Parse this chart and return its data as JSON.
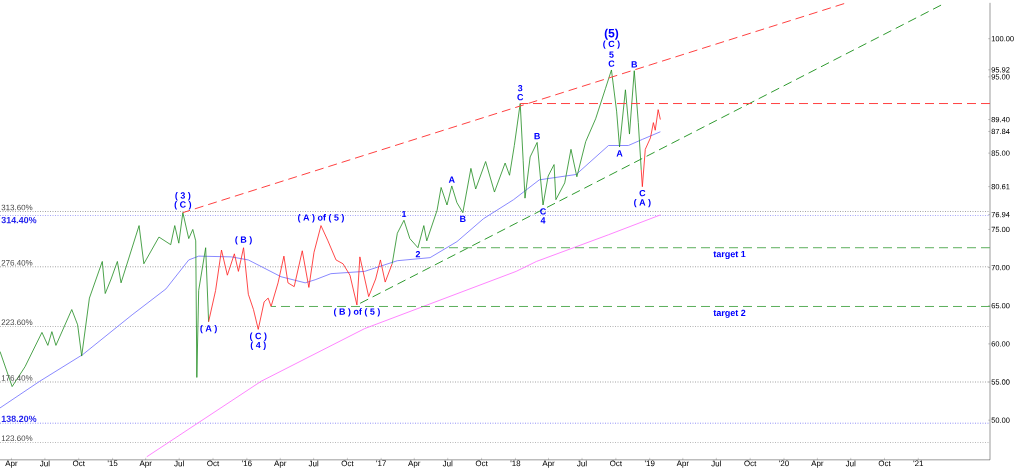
{
  "chart_data": {
    "type": "line",
    "xlim": [
      "2014-03-01",
      "2021-07-15"
    ],
    "ylim": [
      44.8,
      104.7
    ],
    "xticks": [
      {
        "value": "2014-04-01",
        "label": "Apr"
      },
      {
        "value": "2014-07-01",
        "label": "Jul"
      },
      {
        "value": "2014-10-01",
        "label": "Oct"
      },
      {
        "value": "2015-01-01",
        "label": "'15"
      },
      {
        "value": "2015-04-01",
        "label": "Apr"
      },
      {
        "value": "2015-07-01",
        "label": "Jul"
      },
      {
        "value": "2015-10-01",
        "label": "Oct"
      },
      {
        "value": "2016-01-01",
        "label": "'16"
      },
      {
        "value": "2016-04-01",
        "label": "Apr"
      },
      {
        "value": "2016-07-01",
        "label": "Jul"
      },
      {
        "value": "2016-10-01",
        "label": "Oct"
      },
      {
        "value": "2017-01-01",
        "label": "'17"
      },
      {
        "value": "2017-04-01",
        "label": "Apr"
      },
      {
        "value": "2017-07-01",
        "label": "Jul"
      },
      {
        "value": "2017-10-01",
        "label": "Oct"
      },
      {
        "value": "2018-01-01",
        "label": "'18"
      },
      {
        "value": "2018-04-01",
        "label": "Apr"
      },
      {
        "value": "2018-07-01",
        "label": "Jul"
      },
      {
        "value": "2018-10-01",
        "label": "Oct"
      },
      {
        "value": "2019-01-01",
        "label": "'19"
      },
      {
        "value": "2019-04-01",
        "label": "Apr"
      },
      {
        "value": "2019-07-01",
        "label": "Jul"
      },
      {
        "value": "2019-10-01",
        "label": "Oct"
      },
      {
        "value": "2020-01-01",
        "label": "'20"
      },
      {
        "value": "2020-04-01",
        "label": "Apr"
      },
      {
        "value": "2020-07-01",
        "label": "Jul"
      },
      {
        "value": "2020-10-01",
        "label": "Oct"
      },
      {
        "value": "2021-01-01",
        "label": "'21"
      }
    ],
    "yticks": [
      {
        "value": 50,
        "label": "50.00"
      },
      {
        "value": 55,
        "label": "55.00"
      },
      {
        "value": 60,
        "label": "60.00"
      },
      {
        "value": 65,
        "label": "65.00"
      },
      {
        "value": 70,
        "label": "70.00"
      },
      {
        "value": 75,
        "label": "75.00"
      },
      {
        "value": 76.94,
        "label": "76.94"
      },
      {
        "value": 80.61,
        "label": "80.61"
      },
      {
        "value": 85,
        "label": "85.00"
      },
      {
        "value": 87.84,
        "label": "87.84"
      },
      {
        "value": 89.4,
        "label": "89.40"
      },
      {
        "value": 95,
        "label": "95.00"
      },
      {
        "value": 95.92,
        "label": "95.92"
      },
      {
        "value": 100,
        "label": "100.00"
      }
    ],
    "series": [
      {
        "color": "#ff66ff",
        "x": [
          "2015-04-04",
          "2016-02-09",
          "2016-11-17",
          "2018-01-03",
          "2018-02-27",
          "2018-09-11",
          "2019-01-30"
        ],
        "values": [
          45.2,
          55.1,
          62.0,
          69.5,
          70.8,
          74.3,
          76.9
        ]
      },
      {
        "color": "#6b6bff",
        "x": [
          "2014-03-01",
          "2014-06-17",
          "2014-10-12",
          "2015-02-23",
          "2015-05-26",
          "2015-07-27",
          "2015-08-23",
          "2015-11-20",
          "2016-01-05",
          "2016-04-03",
          "2016-06-08",
          "2016-07-05",
          "2016-08-17",
          "2016-11-17",
          "2017-02-14",
          "2017-05-14",
          "2017-07-26",
          "2017-10-06",
          "2017-12-27",
          "2018-03-07",
          "2018-06-15",
          "2018-09-11",
          "2018-11-04",
          "2018-12-12",
          "2019-01-30"
        ],
        "values": [
          51.6,
          55.1,
          58.6,
          63.8,
          67.2,
          71.0,
          71.5,
          71.4,
          71.0,
          68.8,
          68.0,
          68.4,
          69.2,
          69.5,
          70.9,
          71.3,
          73.4,
          76.4,
          78.9,
          81.5,
          82.2,
          86.0,
          86.0,
          86.8,
          87.8
        ]
      },
      {
        "color": "#1f8c1f",
        "x": [
          "2014-03-01",
          "2014-04-03",
          "2014-05-08",
          "2014-06-23",
          "2014-07-09",
          "2014-07-20",
          "2014-07-31",
          "2014-09-12",
          "2014-09-28",
          "2014-10-09",
          "2014-10-30",
          "2014-12-04",
          "2014-12-12",
          "2014-12-28",
          "2015-01-14",
          "2015-01-24",
          "2015-03-14",
          "2015-03-27",
          "2015-05-07",
          "2015-06-08",
          "2015-06-19",
          "2015-06-30",
          "2015-07-11",
          "2015-07-27",
          "2015-08-07",
          "2015-08-15",
          "2015-08-18",
          "2015-08-23",
          "2015-09-11",
          "2015-09-19"
        ],
        "values": [
          59.0,
          54.4,
          57.0,
          61.5,
          59.8,
          61.6,
          59.8,
          64.5,
          62.5,
          58.4,
          66.0,
          70.8,
          66.6,
          68.5,
          70.8,
          68.0,
          75.5,
          70.5,
          74.0,
          73.0,
          75.5,
          73.2,
          77.2,
          73.8,
          75.0,
          73.5,
          55.6,
          67.0,
          72.6,
          62.9
        ]
      },
      {
        "color": "#ff1a1a",
        "x": [
          "2015-09-19",
          "2015-10-08",
          "2015-10-24",
          "2015-11-09",
          "2015-11-28",
          "2015-12-09",
          "2015-12-23",
          "2016-01-05",
          "2016-01-19",
          "2016-02-01",
          "2016-02-17",
          "2016-02-28",
          "2016-03-07",
          "2016-03-26",
          "2016-04-11",
          "2016-04-22",
          "2016-05-09",
          "2016-05-31",
          "2016-06-18",
          "2016-07-02",
          "2016-07-21",
          "2016-08-09",
          "2016-08-31",
          "2016-09-19",
          "2016-10-08",
          "2016-10-27",
          "2016-11-04",
          "2016-11-28",
          "2016-12-17",
          "2016-12-30",
          "2017-01-12",
          "2017-01-31"
        ],
        "values": [
          62.9,
          67.0,
          72.3,
          69.0,
          71.8,
          69.5,
          72.6,
          66.5,
          64.5,
          61.9,
          65.5,
          66.0,
          64.9,
          68.0,
          71.5,
          68.0,
          67.5,
          72.2,
          67.4,
          72.0,
          75.5,
          73.5,
          71.0,
          70.5,
          69.0,
          65.1,
          71.4,
          66.2,
          68.5,
          71.0,
          68.1,
          70.5
        ]
      },
      {
        "color": "#1f8c1f",
        "x": [
          "2017-01-31",
          "2017-02-14",
          "2017-03-04",
          "2017-03-20",
          "2017-04-11",
          "2017-04-27",
          "2017-05-05",
          "2017-06-02",
          "2017-06-13",
          "2017-06-29",
          "2017-07-12",
          "2017-07-26",
          "2017-08-11",
          "2017-09-02",
          "2017-09-15",
          "2017-10-12",
          "2017-11-05",
          "2017-12-04",
          "2017-12-16",
          "2017-12-29",
          "2018-01-14",
          "2018-01-22",
          "2018-01-27",
          "2018-02-10",
          "2018-03-01",
          "2018-03-17",
          "2018-03-31",
          "2018-04-16",
          "2018-04-21",
          "2018-05-15",
          "2018-06-01",
          "2018-06-17",
          "2018-07-11",
          "2018-08-07",
          "2018-09-03",
          "2018-09-19",
          "2018-10-03",
          "2018-10-11",
          "2018-10-27",
          "2018-11-07",
          "2018-11-20",
          "2018-12-01",
          "2018-12-09"
        ],
        "values": [
          70.5,
          74.5,
          76.2,
          73.8,
          72.6,
          75.5,
          73.5,
          77.5,
          80.5,
          78.2,
          80.7,
          78.5,
          77.2,
          83.0,
          80.3,
          83.9,
          79.9,
          83.7,
          82.1,
          86.0,
          91.5,
          84.0,
          79.1,
          84.5,
          86.4,
          78.2,
          82.0,
          83.5,
          78.9,
          81.1,
          85.5,
          81.9,
          86.5,
          89.5,
          93.5,
          95.9,
          90.5,
          85.8,
          93.3,
          87.5,
          95.8,
          89.0,
          82.8
        ]
      },
      {
        "color": "#ff1a1a",
        "x": [
          "2018-12-09",
          "2018-12-12",
          "2018-12-20",
          "2019-01-03",
          "2019-01-11",
          "2019-01-16",
          "2019-01-24",
          "2019-01-30"
        ],
        "values": [
          82.8,
          80.6,
          85.5,
          87.0,
          89.0,
          88.0,
          90.7,
          89.4
        ]
      },
      {
        "color": "#ff4040",
        "line_style": "dashed",
        "x": [
          "2015-07-11",
          "2020-06-13"
        ],
        "values": [
          77.2,
          104.6
        ]
      },
      {
        "color": "#2e9a2e",
        "line_style": "dashed",
        "x": [
          "2016-10-27",
          "2021-03-04"
        ],
        "values": [
          65.1,
          104.4
        ]
      },
      {
        "color": "#ff4040",
        "line_style": "dashed",
        "x": [
          "2018-01-14",
          "2021-07-15"
        ],
        "values": [
          91.5,
          91.5
        ]
      },
      {
        "color": "#5aae5a",
        "line_style": "dashed",
        "x": [
          "2017-04-11",
          "2021-07-15"
        ],
        "values": [
          72.6,
          72.6
        ]
      },
      {
        "color": "#5aae5a",
        "line_style": "dashed",
        "x": [
          "2016-03-07",
          "2021-07-15"
        ],
        "values": [
          64.9,
          64.9
        ]
      }
    ],
    "ref_lines": [
      {
        "axis": "y",
        "value": 77.35,
        "color": "#444444",
        "line_style": "dotted"
      },
      {
        "axis": "y",
        "value": 76.8,
        "color": "#2222ee",
        "line_style": "dotted"
      },
      {
        "axis": "y",
        "value": 70.1,
        "color": "#444444",
        "line_style": "dotted"
      },
      {
        "axis": "y",
        "value": 62.3,
        "color": "#444444",
        "line_style": "dotted"
      },
      {
        "axis": "y",
        "value": 55.0,
        "color": "#444444",
        "line_style": "dotted"
      },
      {
        "axis": "y",
        "value": 49.6,
        "color": "#2222ee",
        "line_style": "dotted"
      },
      {
        "axis": "y",
        "value": 47.1,
        "color": "#444444",
        "line_style": "dotted"
      }
    ],
    "annotations": [
      {
        "text": "313.60%",
        "x": "2014-03-01",
        "y": 77.35
      },
      {
        "text": "314.40%",
        "x": "2014-03-01",
        "y": 76.8
      },
      {
        "text": "276.40%",
        "x": "2014-03-01",
        "y": 70.1
      },
      {
        "text": "223.60%",
        "x": "2014-03-01",
        "y": 62.3
      },
      {
        "text": "176.40%",
        "x": "2014-03-01",
        "y": 55.0
      },
      {
        "text": "138.20%",
        "x": "2014-03-01",
        "y": 49.6
      },
      {
        "text": "123.60%",
        "x": "2014-03-01",
        "y": 47.1
      },
      {
        "text": "( 3 )",
        "x": "2015-07-11",
        "y": 77.2
      },
      {
        "text": "( C )",
        "x": "2015-07-11",
        "y": 77.2
      },
      {
        "text": "( B )",
        "x": "2015-12-23",
        "y": 72.6
      },
      {
        "text": "( A )",
        "x": "2015-09-19",
        "y": 62.9
      },
      {
        "text": "( C )",
        "x": "2016-02-01",
        "y": 61.9
      },
      {
        "text": "( 4 )",
        "x": "2016-02-01",
        "y": 61.9
      },
      {
        "text": "( A ) of ( 5 )",
        "x": "2016-07-21",
        "y": 75.5
      },
      {
        "text": "( B ) of ( 5 )",
        "x": "2016-10-27",
        "y": 65.1
      },
      {
        "text": "1",
        "x": "2017-03-04",
        "y": 76.2
      },
      {
        "text": "2",
        "x": "2017-04-11",
        "y": 72.6
      },
      {
        "text": "A",
        "x": "2017-07-12",
        "y": 80.7
      },
      {
        "text": "B",
        "x": "2017-08-11",
        "y": 77.2
      },
      {
        "text": "3",
        "x": "2018-01-14",
        "y": 91.5
      },
      {
        "text": "C",
        "x": "2018-01-14",
        "y": 91.5
      },
      {
        "text": "B",
        "x": "2018-03-01",
        "y": 86.4
      },
      {
        "text": "C",
        "x": "2018-03-17",
        "y": 78.2
      },
      {
        "text": "4",
        "x": "2018-03-17",
        "y": 78.2
      },
      "(5)",
      {
        "text": "( C )",
        "x": "2018-09-19",
        "y": 95.9
      },
      {
        "text": "5",
        "x": "2018-09-19",
        "y": 95.9
      },
      {
        "text": "C",
        "x": "2018-09-19",
        "y": 95.9
      },
      {
        "text": "B",
        "x": "2018-11-20",
        "y": 95.8
      },
      {
        "text": "A",
        "x": "2018-10-11",
        "y": 85.8
      },
      {
        "text": "C",
        "x": "2018-12-12",
        "y": 80.6
      },
      {
        "text": "( A )",
        "x": "2018-12-12",
        "y": 80.6
      },
      {
        "text": "target 1",
        "x": "2019-08-06",
        "y": 72.6
      },
      {
        "text": "target 2",
        "x": "2019-08-06",
        "y": 64.9
      }
    ]
  }
}
